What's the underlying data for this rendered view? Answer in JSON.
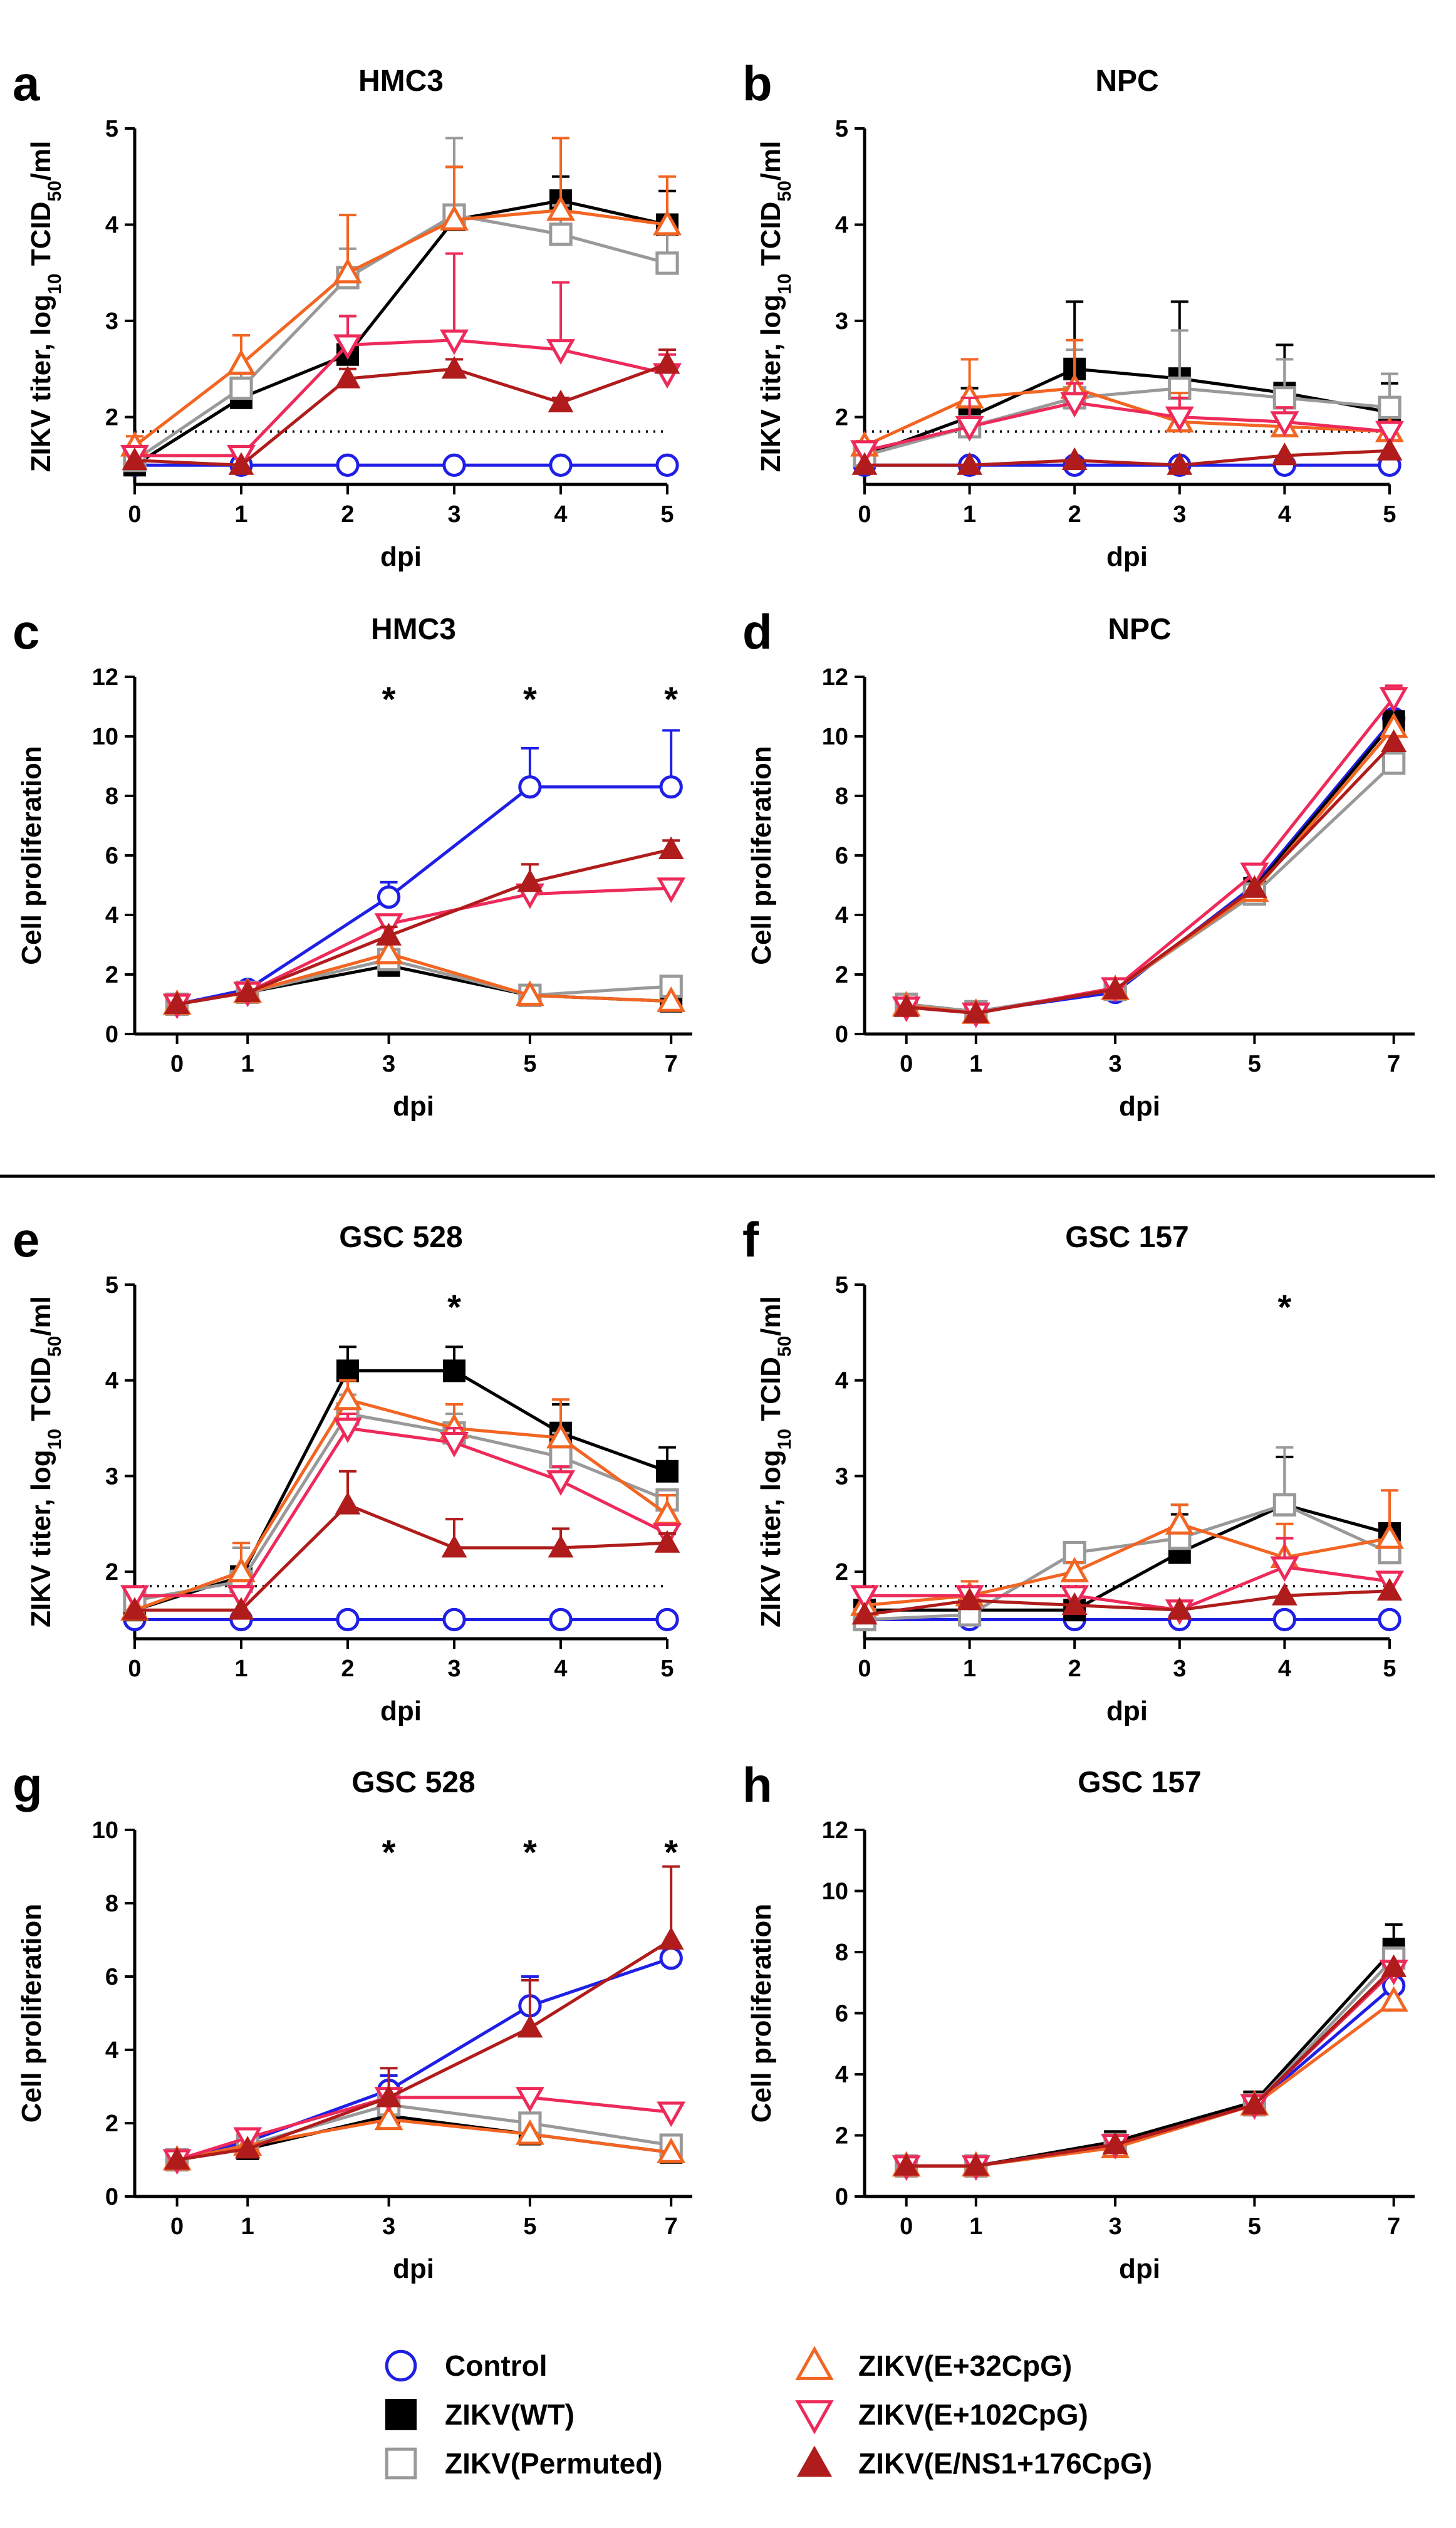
{
  "colors": {
    "control": "#1f1fe6",
    "wt": "#000000",
    "permuted": "#999999",
    "e32": "#f26522",
    "e102": "#ee2a5a",
    "ens1": "#b01c1c"
  },
  "legend": [
    {
      "key": "control",
      "label": "Control",
      "marker": "circle-open",
      "color": "#1f1fe6"
    },
    {
      "key": "wt",
      "label": "ZIKV(WT)",
      "marker": "square-filled",
      "color": "#000000"
    },
    {
      "key": "permuted",
      "label": "ZIKV(Permuted)",
      "marker": "square-open",
      "color": "#999999"
    },
    {
      "key": "e32",
      "label": "ZIKV(E+32CpG)",
      "marker": "triangle-up-open",
      "color": "#f26522"
    },
    {
      "key": "e102",
      "label": "ZIKV(E+102CpG)",
      "marker": "triangle-down-open",
      "color": "#ee2a5a"
    },
    {
      "key": "ens1",
      "label": "ZIKV(E/NS1+176CpG)",
      "marker": "triangle-up-filled",
      "color": "#b01c1c"
    }
  ],
  "chart_data": [
    {
      "id": "a",
      "letter": "a",
      "type": "line",
      "title": "HMC3",
      "xlabel": "dpi",
      "ylabel": "ZIKV titer, log10 TCID50/ml",
      "ylabel_kind": "titer",
      "x": [
        0,
        1,
        2,
        3,
        4,
        5
      ],
      "xlim": [
        0,
        5
      ],
      "xticks": [
        0,
        1,
        2,
        3,
        4,
        5
      ],
      "ylim": [
        1.3,
        5
      ],
      "yticks": [
        2,
        3,
        4,
        5
      ],
      "dotted_line_y": 1.85,
      "stars_at_x": [],
      "series": [
        {
          "key": "control",
          "values": [
            1.5,
            1.5,
            1.5,
            1.5,
            1.5,
            1.5
          ]
        },
        {
          "key": "wt",
          "values": [
            1.5,
            2.2,
            2.65,
            4.05,
            4.25,
            4.0
          ],
          "err": [
            0,
            0.15,
            0.4,
            0.55,
            0.25,
            0.35
          ]
        },
        {
          "key": "permuted",
          "values": [
            1.55,
            2.3,
            3.45,
            4.1,
            3.9,
            3.6
          ],
          "err": [
            0,
            0.2,
            0.3,
            0.8,
            0.3,
            0.3
          ]
        },
        {
          "key": "e32",
          "values": [
            1.7,
            2.55,
            3.5,
            4.05,
            4.15,
            4.0
          ],
          "err": [
            0.1,
            0.3,
            0.6,
            0.55,
            0.75,
            0.5
          ]
        },
        {
          "key": "e102",
          "values": [
            1.6,
            1.6,
            2.75,
            2.8,
            2.7,
            2.45
          ],
          "err": [
            0,
            0.05,
            0.3,
            0.9,
            0.7,
            0.2
          ]
        },
        {
          "key": "ens1",
          "values": [
            1.55,
            1.5,
            2.4,
            2.5,
            2.15,
            2.55
          ],
          "err": [
            0,
            0,
            0.1,
            0.1,
            0.05,
            0.15
          ]
        }
      ]
    },
    {
      "id": "b",
      "letter": "b",
      "type": "line",
      "title": "NPC",
      "xlabel": "dpi",
      "ylabel": "ZIKV titer, log10 TCID50/ml",
      "ylabel_kind": "titer",
      "x": [
        0,
        1,
        2,
        3,
        4,
        5
      ],
      "xlim": [
        0,
        5
      ],
      "xticks": [
        0,
        1,
        2,
        3,
        4,
        5
      ],
      "ylim": [
        1.3,
        5
      ],
      "yticks": [
        2,
        3,
        4,
        5
      ],
      "dotted_line_y": 1.85,
      "stars_at_x": [],
      "series": [
        {
          "key": "control",
          "values": [
            1.5,
            1.5,
            1.5,
            1.5,
            1.5,
            1.5
          ]
        },
        {
          "key": "wt",
          "values": [
            1.6,
            2.0,
            2.5,
            2.4,
            2.25,
            2.05
          ],
          "err": [
            0,
            0.3,
            0.7,
            0.8,
            0.5,
            0.3
          ]
        },
        {
          "key": "permuted",
          "values": [
            1.6,
            1.9,
            2.2,
            2.3,
            2.2,
            2.1
          ],
          "err": [
            0,
            0.3,
            0.5,
            0.6,
            0.4,
            0.35
          ]
        },
        {
          "key": "e32",
          "values": [
            1.7,
            2.2,
            2.3,
            1.95,
            1.9,
            1.85
          ],
          "err": [
            0.05,
            0.4,
            0.5,
            0.3,
            0.2,
            0.1
          ]
        },
        {
          "key": "e102",
          "values": [
            1.65,
            1.9,
            2.15,
            2.0,
            1.95,
            1.85
          ],
          "err": [
            0.05,
            0.3,
            0.2,
            0.2,
            0.15,
            0.1
          ]
        },
        {
          "key": "ens1",
          "values": [
            1.5,
            1.5,
            1.55,
            1.5,
            1.6,
            1.65
          ],
          "err": [
            0,
            0,
            0,
            0,
            0,
            0
          ]
        }
      ]
    },
    {
      "id": "c",
      "letter": "c",
      "type": "line",
      "title": "HMC3",
      "xlabel": "dpi",
      "ylabel": "Cell proliferation",
      "ylabel_kind": "plain",
      "x": [
        0,
        1,
        3,
        5,
        7
      ],
      "xlim": [
        -0.6,
        7.3
      ],
      "xticks": [
        0,
        1,
        3,
        5,
        7
      ],
      "ylim": [
        0,
        12
      ],
      "yticks": [
        0,
        2,
        4,
        6,
        8,
        10,
        12
      ],
      "stars_at_x": [
        3,
        5,
        7
      ],
      "series": [
        {
          "key": "control",
          "values": [
            1.0,
            1.5,
            4.6,
            8.3,
            8.3
          ],
          "err": [
            0,
            0,
            0.5,
            1.3,
            1.9
          ]
        },
        {
          "key": "wt",
          "values": [
            1.0,
            1.4,
            2.3,
            1.3,
            1.1
          ],
          "err": [
            0,
            0,
            0,
            0,
            0
          ]
        },
        {
          "key": "permuted",
          "values": [
            1.0,
            1.4,
            2.5,
            1.3,
            1.6
          ],
          "err": [
            0,
            0,
            0,
            0,
            0
          ]
        },
        {
          "key": "e32",
          "values": [
            1.0,
            1.4,
            2.7,
            1.3,
            1.1
          ],
          "err": [
            0,
            0,
            0,
            0,
            0
          ]
        },
        {
          "key": "e102",
          "values": [
            1.0,
            1.4,
            3.7,
            4.7,
            4.9
          ],
          "err": [
            0,
            0,
            0.2,
            0.3,
            0.3
          ]
        },
        {
          "key": "ens1",
          "values": [
            1.0,
            1.4,
            3.3,
            5.1,
            6.2
          ],
          "err": [
            0,
            0,
            0.3,
            0.6,
            0.3
          ]
        }
      ]
    },
    {
      "id": "d",
      "letter": "d",
      "type": "line",
      "title": "NPC",
      "xlabel": "dpi",
      "ylabel": "Cell proliferation",
      "ylabel_kind": "plain",
      "x": [
        0,
        1,
        3,
        5,
        7
      ],
      "xlim": [
        -0.6,
        7.3
      ],
      "xticks": [
        0,
        1,
        3,
        5,
        7
      ],
      "ylim": [
        0,
        12
      ],
      "yticks": [
        0,
        2,
        4,
        6,
        8,
        10,
        12
      ],
      "stars_at_x": [],
      "series": [
        {
          "key": "control",
          "values": [
            1.0,
            0.75,
            1.4,
            5.0,
            10.6
          ]
        },
        {
          "key": "wt",
          "values": [
            1.0,
            0.75,
            1.5,
            4.9,
            10.5
          ]
        },
        {
          "key": "permuted",
          "values": [
            1.0,
            0.75,
            1.5,
            4.7,
            9.1
          ]
        },
        {
          "key": "e32",
          "values": [
            0.95,
            0.7,
            1.5,
            4.8,
            10.3
          ]
        },
        {
          "key": "e102",
          "values": [
            0.9,
            0.7,
            1.55,
            5.4,
            11.3
          ],
          "err": [
            0,
            0,
            0,
            0,
            0.4
          ]
        },
        {
          "key": "ens1",
          "values": [
            0.9,
            0.7,
            1.5,
            4.9,
            9.8
          ]
        }
      ]
    },
    {
      "id": "e",
      "letter": "e",
      "type": "line",
      "title": "GSC 528",
      "xlabel": "dpi",
      "ylabel": "ZIKV titer, log10 TCID50/ml",
      "ylabel_kind": "titer",
      "x": [
        0,
        1,
        2,
        3,
        4,
        5
      ],
      "xlim": [
        0,
        5
      ],
      "xticks": [
        0,
        1,
        2,
        3,
        4,
        5
      ],
      "ylim": [
        1.3,
        5
      ],
      "yticks": [
        2,
        3,
        4,
        5
      ],
      "dotted_line_y": 1.85,
      "stars_at_x": [
        3
      ],
      "series": [
        {
          "key": "control",
          "values": [
            1.5,
            1.5,
            1.5,
            1.5,
            1.5,
            1.5
          ]
        },
        {
          "key": "wt",
          "values": [
            1.6,
            1.95,
            4.1,
            4.1,
            3.45,
            3.05
          ],
          "err": [
            0,
            0.3,
            0.25,
            0.25,
            0.3,
            0.25
          ]
        },
        {
          "key": "permuted",
          "values": [
            1.7,
            1.9,
            3.65,
            3.45,
            3.2,
            2.75
          ],
          "err": [
            0,
            0.35,
            0.2,
            0.2,
            0.25,
            0.1
          ]
        },
        {
          "key": "e32",
          "values": [
            1.6,
            2.0,
            3.8,
            3.5,
            3.4,
            2.6
          ],
          "err": [
            0,
            0.3,
            0.2,
            0.25,
            0.4,
            0.2
          ]
        },
        {
          "key": "e102",
          "values": [
            1.75,
            1.75,
            3.5,
            3.35,
            2.95,
            2.4
          ],
          "err": [
            0.05,
            0.1,
            0.15,
            0.15,
            0.15,
            0.1
          ]
        },
        {
          "key": "ens1",
          "values": [
            1.6,
            1.6,
            2.7,
            2.25,
            2.25,
            2.3
          ],
          "err": [
            0,
            0,
            0.35,
            0.3,
            0.2,
            0.1
          ]
        }
      ]
    },
    {
      "id": "f",
      "letter": "f",
      "type": "line",
      "title": "GSC 157",
      "xlabel": "dpi",
      "ylabel": "ZIKV titer, log10 TCID50/ml",
      "ylabel_kind": "titer",
      "x": [
        0,
        1,
        2,
        3,
        4,
        5
      ],
      "xlim": [
        0,
        5
      ],
      "xticks": [
        0,
        1,
        2,
        3,
        4,
        5
      ],
      "ylim": [
        1.3,
        5
      ],
      "yticks": [
        2,
        3,
        4,
        5
      ],
      "dotted_line_y": 1.85,
      "stars_at_x": [
        4
      ],
      "series": [
        {
          "key": "control",
          "values": [
            1.5,
            1.5,
            1.5,
            1.5,
            1.5,
            1.5
          ]
        },
        {
          "key": "wt",
          "values": [
            1.6,
            1.6,
            1.6,
            2.2,
            2.7,
            2.4
          ],
          "err": [
            0,
            0,
            0,
            0.4,
            0.5,
            0.1
          ]
        },
        {
          "key": "permuted",
          "values": [
            1.5,
            1.55,
            2.2,
            2.35,
            2.7,
            2.2
          ],
          "err": [
            0,
            0.1,
            0.1,
            0.35,
            0.6,
            0.1
          ]
        },
        {
          "key": "e32",
          "values": [
            1.65,
            1.75,
            2.0,
            2.5,
            2.15,
            2.35
          ],
          "err": [
            0,
            0.15,
            0.1,
            0.2,
            0.35,
            0.5
          ]
        },
        {
          "key": "e102",
          "values": [
            1.75,
            1.75,
            1.75,
            1.6,
            2.05,
            1.9
          ],
          "err": [
            0,
            0,
            0,
            0,
            0.3,
            0
          ]
        },
        {
          "key": "ens1",
          "values": [
            1.55,
            1.7,
            1.65,
            1.6,
            1.75,
            1.8
          ],
          "err": [
            0,
            0,
            0,
            0,
            0,
            0
          ]
        }
      ]
    },
    {
      "id": "g",
      "letter": "g",
      "type": "line",
      "title": "GSC 528",
      "xlabel": "dpi",
      "ylabel": "Cell proliferation",
      "ylabel_kind": "plain",
      "x": [
        0,
        1,
        3,
        5,
        7
      ],
      "xlim": [
        -0.6,
        7.3
      ],
      "xticks": [
        0,
        1,
        3,
        5,
        7
      ],
      "ylim": [
        0,
        10
      ],
      "yticks": [
        0,
        2,
        4,
        6,
        8,
        10
      ],
      "stars_at_x": [
        3,
        5,
        7
      ],
      "series": [
        {
          "key": "control",
          "values": [
            1.0,
            1.5,
            2.9,
            5.2,
            6.5
          ],
          "err": [
            0,
            0,
            0.4,
            0.8,
            0
          ]
        },
        {
          "key": "wt",
          "values": [
            1.0,
            1.3,
            2.2,
            1.7,
            1.2
          ]
        },
        {
          "key": "permuted",
          "values": [
            1.0,
            1.4,
            2.5,
            2.0,
            1.4
          ]
        },
        {
          "key": "e32",
          "values": [
            1.0,
            1.4,
            2.1,
            1.7,
            1.2
          ]
        },
        {
          "key": "e102",
          "values": [
            1.0,
            1.6,
            2.7,
            2.7,
            2.3
          ]
        },
        {
          "key": "ens1",
          "values": [
            1.0,
            1.3,
            2.7,
            4.6,
            7.0
          ],
          "err": [
            0,
            0,
            0.8,
            1.3,
            2.0
          ]
        }
      ]
    },
    {
      "id": "h",
      "letter": "h",
      "type": "line",
      "title": "GSC 157",
      "xlabel": "dpi",
      "ylabel": "Cell proliferation",
      "ylabel_kind": "plain",
      "x": [
        0,
        1,
        3,
        5,
        7
      ],
      "xlim": [
        -0.6,
        7.3
      ],
      "xticks": [
        0,
        1,
        3,
        5,
        7
      ],
      "ylim": [
        0,
        12
      ],
      "yticks": [
        0,
        2,
        4,
        6,
        8,
        10,
        12
      ],
      "stars_at_x": [],
      "series": [
        {
          "key": "control",
          "values": [
            1.0,
            1.0,
            1.7,
            3.0,
            6.9
          ]
        },
        {
          "key": "wt",
          "values": [
            1.0,
            1.0,
            1.8,
            3.1,
            8.1
          ],
          "err": [
            0,
            0,
            0,
            0,
            0.8
          ]
        },
        {
          "key": "permuted",
          "values": [
            1.0,
            1.0,
            1.7,
            3.0,
            7.8
          ]
        },
        {
          "key": "e32",
          "values": [
            1.0,
            1.0,
            1.6,
            3.0,
            6.4
          ]
        },
        {
          "key": "e102",
          "values": [
            1.0,
            1.0,
            1.7,
            3.0,
            7.4
          ]
        },
        {
          "key": "ens1",
          "values": [
            1.0,
            1.0,
            1.7,
            3.0,
            7.5
          ]
        }
      ]
    }
  ]
}
